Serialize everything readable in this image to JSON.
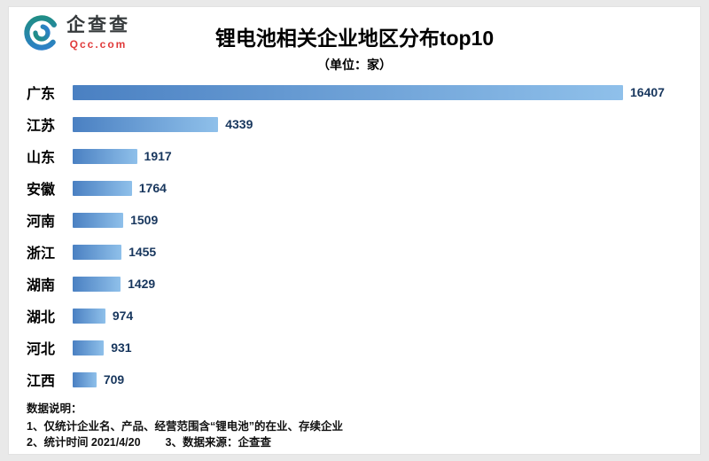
{
  "header": {
    "logo_text": "企查查",
    "logo_sub": "Qcc.com",
    "title": "锂电池相关企业地区分布top10",
    "subtitle": "（单位：家）"
  },
  "chart_data": {
    "type": "bar",
    "orientation": "horizontal",
    "title": "锂电池相关企业地区分布top10",
    "subtitle": "（单位：家）",
    "unit": "家",
    "categories": [
      "广东",
      "江苏",
      "山东",
      "安徽",
      "河南",
      "浙江",
      "湖南",
      "湖北",
      "河北",
      "江西"
    ],
    "values": [
      16407,
      4339,
      1917,
      1764,
      1509,
      1455,
      1429,
      974,
      931,
      709
    ],
    "xlim": [
      0,
      16407
    ],
    "grid": false,
    "legend": false,
    "bar_color_start": "#4a80c2",
    "bar_color_end": "#8fc0ea",
    "value_label_color": "#17365d"
  },
  "footer": {
    "heading": "数据说明：",
    "line1": "1、仅统计企业名、产品、经营范围含“锂电池”的在业、存续企业",
    "line2a": "2、统计时间 2021/4/20",
    "line2b": "3、数据来源：企查查"
  }
}
